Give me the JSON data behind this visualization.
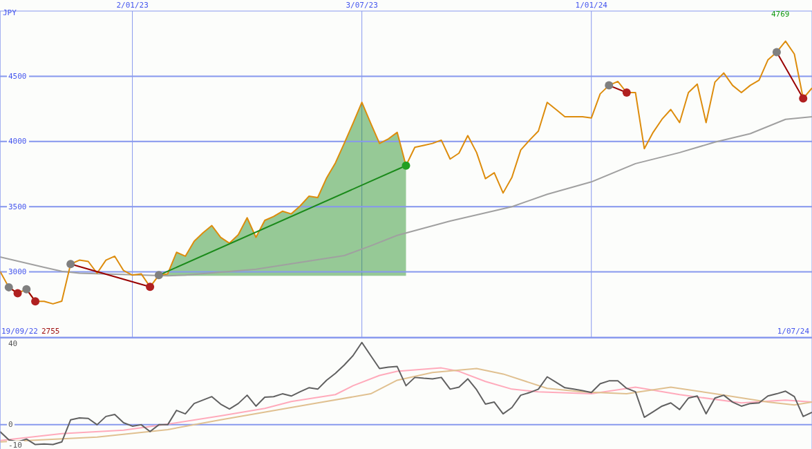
{
  "chart_data": [
    {
      "type": "line",
      "ylabel": "JPY",
      "annotations": [
        "19/09/22",
        "2755",
        "4769",
        "1/07/24"
      ],
      "x": [
        "2022-09-19",
        "2022-09-26",
        "2022-10-03",
        "2022-10-10",
        "2022-10-17",
        "2022-10-24",
        "2022-10-31",
        "2022-11-07",
        "2022-11-14",
        "2022-11-21",
        "2022-11-28",
        "2022-12-05",
        "2022-12-12",
        "2022-12-19",
        "2022-12-26",
        "2023-01-02",
        "2023-01-09",
        "2023-01-16",
        "2023-01-23",
        "2023-01-30",
        "2023-02-06",
        "2023-02-13",
        "2023-02-20",
        "2023-02-27",
        "2023-03-06",
        "2023-03-13",
        "2023-03-20",
        "2023-03-27",
        "2023-04-03",
        "2023-04-10",
        "2023-04-17",
        "2023-04-24",
        "2023-05-01",
        "2023-05-08",
        "2023-05-15",
        "2023-05-22",
        "2023-05-29",
        "2023-06-05",
        "2023-06-12",
        "2023-06-19",
        "2023-06-26",
        "2023-07-03",
        "2023-07-10",
        "2023-07-17",
        "2023-07-24",
        "2023-07-31",
        "2023-08-07",
        "2023-08-14",
        "2023-08-21",
        "2023-08-28",
        "2023-09-04",
        "2023-09-11",
        "2023-09-18",
        "2023-09-25",
        "2023-10-02",
        "2023-10-09",
        "2023-10-16",
        "2023-10-23",
        "2023-10-30",
        "2023-11-06",
        "2023-11-13",
        "2023-11-20",
        "2023-11-27",
        "2023-12-04",
        "2023-12-11",
        "2023-12-18",
        "2023-12-25",
        "2024-01-01",
        "2024-01-08",
        "2024-01-15",
        "2024-01-22",
        "2024-01-29",
        "2024-02-05",
        "2024-02-12",
        "2024-02-19",
        "2024-02-26",
        "2024-03-04",
        "2024-03-11",
        "2024-03-18",
        "2024-03-25",
        "2024-04-01",
        "2024-04-08",
        "2024-04-15",
        "2024-04-22",
        "2024-04-29",
        "2024-05-06",
        "2024-05-13",
        "2024-05-20",
        "2024-05-27",
        "2024-06-03",
        "2024-06-10",
        "2024-06-17",
        "2024-06-24"
      ],
      "series": [
        {
          "color": "#a0a0a0",
          "x": [
            "2022-09-19",
            "2022-10-24",
            "2022-11-07",
            "2022-11-21",
            "2023-01-30",
            "2023-02-13",
            "2023-04-10",
            "2023-06-19",
            "2023-07-10",
            "2023-07-31",
            "2023-09-11",
            "2023-10-30",
            "2023-11-27",
            "2024-01-01",
            "2024-02-05",
            "2024-03-11",
            "2024-04-08",
            "2024-05-06",
            "2024-06-03",
            "2024-06-24"
          ],
          "values": [
            3115,
            3035,
            3005,
            2990,
            2970,
            2975,
            3020,
            3125,
            3200,
            3280,
            3390,
            3500,
            3595,
            3690,
            3830,
            3915,
            3995,
            4060,
            4170,
            4190
          ]
        },
        {
          "color": "#dd8c0c",
          "values": [
            3005,
            2882,
            2836,
            2867,
            2774,
            2774,
            2755,
            2775,
            3060,
            3090,
            3080,
            2990,
            3090,
            3120,
            3010,
            2975,
            2985,
            2885,
            2975,
            2985,
            3150,
            3120,
            3235,
            3300,
            3355,
            3265,
            3220,
            3285,
            3415,
            3265,
            3395,
            3425,
            3465,
            3445,
            3505,
            3580,
            3570,
            3720,
            3835,
            3985,
            4140,
            4300,
            4140,
            3985,
            4020,
            4070,
            3815,
            3955,
            3970,
            3985,
            4010,
            3865,
            3910,
            4045,
            3915,
            3715,
            3760,
            3605,
            3725,
            3935,
            4010,
            4080,
            4300,
            4245,
            4190,
            4190,
            4190,
            4180,
            4365,
            4430,
            4460,
            4375,
            4375,
            3945,
            4070,
            4170,
            4245,
            4145,
            4375,
            4440,
            4145,
            4455,
            4525,
            4430,
            4375,
            4430,
            4470,
            4625,
            4685,
            4769,
            4670,
            4330,
            4410
          ]
        },
        {
          "color": "#990000",
          "marker": "circle",
          "colors": [
            "#808080",
            "#b02020"
          ],
          "x": [
            "2022-09-26",
            "2022-10-03"
          ],
          "values": [
            2882,
            2836
          ]
        },
        {
          "color": "#990000",
          "marker": "circle",
          "colors": [
            "#808080",
            "#b02020"
          ],
          "x": [
            "2022-10-10",
            "2022-10-17"
          ],
          "values": [
            2867,
            2774
          ]
        },
        {
          "color": "#990000",
          "marker": "circle",
          "colors": [
            "#808080",
            "#b02020"
          ],
          "x": [
            "2022-11-14",
            "2023-01-16"
          ],
          "values": [
            3060,
            2885
          ]
        },
        {
          "color": "#1a8a1a",
          "marker": "circle",
          "colors": [
            "#808080",
            null,
            null,
            null,
            null,
            null,
            null,
            null,
            null,
            null,
            null,
            null,
            null,
            null,
            null,
            null,
            null,
            null,
            null,
            null,
            null,
            null,
            null,
            null,
            null,
            null,
            null,
            null,
            "#22a022"
          ],
          "x": [
            "2023-01-23",
            "2023-01-30",
            "2023-02-06",
            "2023-02-13",
            "2023-02-20",
            "2023-02-27",
            "2023-03-06",
            "2023-03-13",
            "2023-03-20",
            "2023-03-27",
            "2023-04-03",
            "2023-04-10",
            "2023-04-17",
            "2023-04-24",
            "2023-05-01",
            "2023-05-08",
            "2023-05-15",
            "2023-05-22",
            "2023-05-29",
            "2023-06-05",
            "2023-06-12",
            "2023-06-19",
            "2023-06-26",
            "2023-07-03",
            "2023-07-10",
            "2023-07-17",
            "2023-07-24",
            "2023-07-31",
            "2023-08-07"
          ],
          "values": [
            2975,
            null,
            null,
            null,
            null,
            null,
            null,
            null,
            null,
            null,
            null,
            null,
            null,
            null,
            null,
            null,
            null,
            null,
            null,
            null,
            null,
            null,
            null,
            null,
            null,
            null,
            null,
            null,
            3815
          ],
          "lower": [
            2970,
            2970,
            2970,
            2970,
            2970,
            2970,
            2970,
            2970,
            2970,
            2970,
            2970,
            2970,
            2970,
            2970,
            2970,
            2970,
            2970,
            2970,
            2970,
            2970,
            2970,
            2970,
            2970,
            2970,
            2970,
            2970,
            2970,
            2970,
            2970
          ],
          "upper": [
            2975,
            2985,
            3150,
            3120,
            3235,
            3300,
            3355,
            3265,
            3220,
            3285,
            3415,
            3265,
            3395,
            3425,
            3465,
            3445,
            3505,
            3580,
            3570,
            3720,
            3835,
            3985,
            4140,
            4300,
            4140,
            3985,
            4020,
            4070,
            3815
          ]
        },
        {
          "color": "#990000",
          "marker": "circle",
          "colors": [
            "#808080",
            "#b02020"
          ],
          "x": [
            "2024-01-15",
            "2024-01-29"
          ],
          "values": [
            4430,
            4375
          ]
        },
        {
          "color": "#990000",
          "marker": "circle",
          "colors": [
            "#808080",
            "#b02020"
          ],
          "x": [
            "2024-05-27",
            "2024-06-17"
          ],
          "values": [
            4685,
            4330
          ]
        }
      ],
      "xlim": [
        "2022-09-19",
        "2024-06-24"
      ],
      "xticks": [
        {
          "value": "2023-01-02",
          "label": "2/01/23"
        },
        {
          "value": "2023-07-03",
          "label": "3/07/23"
        },
        {
          "value": "2024-01-01",
          "label": "1/01/24"
        }
      ],
      "ylim": [
        2500,
        5000
      ],
      "yticks": [
        3000,
        3500,
        4000,
        4500
      ],
      "grid": true
    },
    {
      "type": "line",
      "tick_labels": "y",
      "x": [
        "2022-09-19",
        "2022-09-26",
        "2022-10-03",
        "2022-10-10",
        "2022-10-17",
        "2022-10-24",
        "2022-10-31",
        "2022-11-07",
        "2022-11-14",
        "2022-11-21",
        "2022-11-28",
        "2022-12-05",
        "2022-12-12",
        "2022-12-19",
        "2022-12-26",
        "2023-01-02",
        "2023-01-09",
        "2023-01-16",
        "2023-01-23",
        "2023-01-30",
        "2023-02-06",
        "2023-02-13",
        "2023-02-20",
        "2023-02-27",
        "2023-03-06",
        "2023-03-13",
        "2023-03-20",
        "2023-03-27",
        "2023-04-03",
        "2023-04-10",
        "2023-04-17",
        "2023-04-24",
        "2023-05-01",
        "2023-05-08",
        "2023-05-15",
        "2023-05-22",
        "2023-05-29",
        "2023-06-05",
        "2023-06-12",
        "2023-06-19",
        "2023-06-26",
        "2023-07-03",
        "2023-07-10",
        "2023-07-17",
        "2023-07-24",
        "2023-07-31",
        "2023-08-07",
        "2023-08-14",
        "2023-08-21",
        "2023-08-28",
        "2023-09-04",
        "2023-09-11",
        "2023-09-18",
        "2023-09-25",
        "2023-10-02",
        "2023-10-09",
        "2023-10-16",
        "2023-10-23",
        "2023-10-30",
        "2023-11-06",
        "2023-11-13",
        "2023-11-20",
        "2023-11-27",
        "2023-12-04",
        "2023-12-11",
        "2023-12-18",
        "2023-12-25",
        "2024-01-01",
        "2024-01-08",
        "2024-01-15",
        "2024-01-22",
        "2024-01-29",
        "2024-02-05",
        "2024-02-12",
        "2024-02-19",
        "2024-02-26",
        "2024-03-04",
        "2024-03-11",
        "2024-03-18",
        "2024-03-25",
        "2024-04-01",
        "2024-04-08",
        "2024-04-15",
        "2024-04-22",
        "2024-04-29",
        "2024-05-06",
        "2024-05-13",
        "2024-05-20",
        "2024-05-27",
        "2024-06-03",
        "2024-06-10",
        "2024-06-17",
        "2024-06-24"
      ],
      "series": [
        {
          "color": "#ffaabb",
          "x": [
            "2022-09-19",
            "2022-11-07",
            "2022-12-26",
            "2023-01-30",
            "2023-03-13",
            "2023-04-17",
            "2023-05-08",
            "2023-06-12",
            "2023-06-26",
            "2023-07-17",
            "2023-07-31",
            "2023-09-04",
            "2023-09-18",
            "2023-10-09",
            "2023-10-30",
            "2023-11-20",
            "2024-01-01",
            "2024-02-05",
            "2024-03-11",
            "2024-04-29",
            "2024-06-03",
            "2024-06-24"
          ],
          "values": [
            -7.8,
            -4.4,
            -2.7,
            0.3,
            4.4,
            8.1,
            11.5,
            14.9,
            19.3,
            24.4,
            26.4,
            28.1,
            26.4,
            21.4,
            17.6,
            16.3,
            15.3,
            18.6,
            14.9,
            10.8,
            12.2,
            11.2
          ]
        },
        {
          "color": "#e0c090",
          "x": [
            "2022-09-19",
            "2022-12-05",
            "2023-01-30",
            "2023-03-13",
            "2023-05-29",
            "2023-07-10",
            "2023-07-31",
            "2023-08-28",
            "2023-10-02",
            "2023-10-23",
            "2023-11-27",
            "2023-12-25",
            "2024-01-29",
            "2024-03-04",
            "2024-04-08",
            "2024-05-20",
            "2024-06-10",
            "2024-06-24"
          ],
          "values": [
            -8.5,
            -6.1,
            -2.4,
            2.4,
            10.8,
            15.3,
            22,
            25.8,
            27.8,
            25.1,
            18,
            16.3,
            15.3,
            18.6,
            15.3,
            11.2,
            9.8,
            11.2
          ]
        },
        {
          "color": "#606060",
          "values": [
            -3.4,
            -7.5,
            -8.5,
            -7.1,
            -9.8,
            -9.5,
            -9.8,
            -8.5,
            2.4,
            3.4,
            3.1,
            0,
            4.1,
            5.1,
            1,
            -0.7,
            0,
            -3.4,
            0,
            0,
            7.1,
            5.4,
            10.5,
            12.2,
            13.9,
            10.2,
            7.8,
            10.5,
            14.6,
            9.2,
            13.6,
            13.9,
            15.3,
            14.2,
            16.3,
            18.3,
            17.6,
            22,
            25.4,
            29.5,
            34.2,
            40.7,
            34.2,
            27.8,
            28.5,
            28.8,
            19.3,
            23.4,
            23,
            22.7,
            23.4,
            17.6,
            18.6,
            22.7,
            17.3,
            10.2,
            11.2,
            5.4,
            8.5,
            14.6,
            15.9,
            17.6,
            23.7,
            21,
            18.3,
            17.6,
            16.9,
            15.9,
            20.3,
            21.7,
            21.7,
            18,
            16.3,
            3.7,
            6.4,
            9.2,
            10.8,
            7.5,
            13.2,
            14.2,
            5.4,
            13.2,
            14.6,
            11.2,
            9.2,
            10.5,
            10.8,
            14.2,
            15.3,
            16.6,
            13.9,
            4.1,
            6.1
          ]
        }
      ],
      "xlim": [
        "2022-09-19",
        "2024-06-24"
      ],
      "xticks": [
        "2023-01-02",
        "2023-07-03",
        "2024-01-01"
      ],
      "ylim": [
        -12,
        43
      ],
      "yticks": [
        -10,
        0,
        40
      ],
      "grid": "x",
      "ref_lines": [
        {
          "axis": "y",
          "value": 0,
          "color": "#8899ee"
        }
      ]
    }
  ]
}
